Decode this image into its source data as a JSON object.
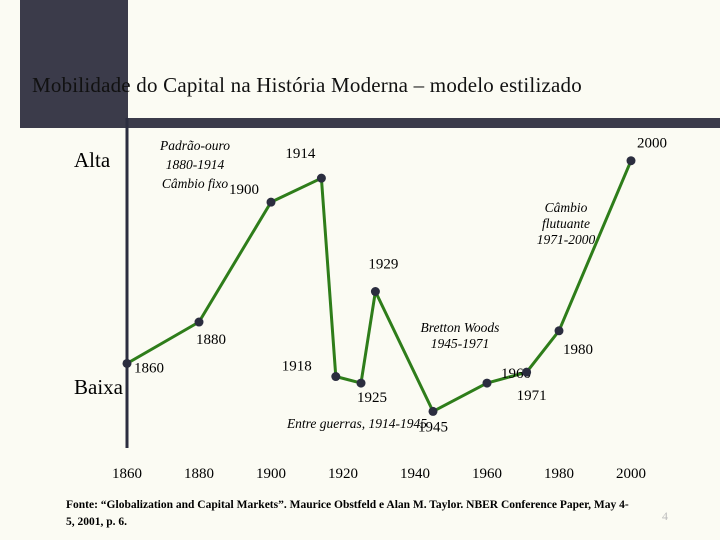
{
  "slide": {
    "title": "Mobilidade do Capital na História Moderna – modelo estilizado",
    "footer": "Fonte: “Globalization and Capital Markets”. Maurice Obstfeld e Alan M. Taylor. NBER Conference Paper, May 4-5, 2001, p. 6.",
    "page_number": "4",
    "colors": {
      "line": "#2e7d1a",
      "point": "#2b2d3f",
      "dark_block": "#3b3b4a",
      "background": "#fbfbf3"
    }
  },
  "chart_data": {
    "type": "line",
    "title": "Mobilidade do Capital na História Moderna – modelo estilizado",
    "xlabel": "",
    "ylabel": "",
    "y_high_label": "Alta",
    "y_low_label": "Baixa",
    "xlim": [
      1860,
      2000
    ],
    "ylim": [
      0,
      10
    ],
    "x_ticks": [
      "1860",
      "1880",
      "1900",
      "1920",
      "1940",
      "1960",
      "1980",
      "2000"
    ],
    "series": [
      {
        "name": "Mobilidade do capital",
        "points": [
          {
            "x": 1860,
            "y": 0.3,
            "label": "1860"
          },
          {
            "x": 1880,
            "y": 2.2,
            "label": "1880"
          },
          {
            "x": 1900,
            "y": 7.7,
            "label": "1900"
          },
          {
            "x": 1914,
            "y": 8.8,
            "label": "1914"
          },
          {
            "x": 1918,
            "y": -0.3,
            "label": "1918"
          },
          {
            "x": 1925,
            "y": -0.6,
            "label": "1925"
          },
          {
            "x": 1929,
            "y": 3.6,
            "label": "1929"
          },
          {
            "x": 1945,
            "y": -1.9,
            "label": "1945"
          },
          {
            "x": 1960,
            "y": -0.6,
            "label": "1960"
          },
          {
            "x": 1971,
            "y": -0.1,
            "label": "1971"
          },
          {
            "x": 1980,
            "y": 1.8,
            "label": "1980"
          },
          {
            "x": 2000,
            "y": 9.6,
            "label": "2000"
          }
        ]
      }
    ],
    "annotations": [
      {
        "id": "padrao",
        "lines": [
          "Padrão-ouro",
          "1880-1914",
          "Câmbio fixo"
        ]
      },
      {
        "id": "flutuante",
        "lines": [
          "Câmbio",
          "flutuante",
          "1971-2000"
        ]
      },
      {
        "id": "bretton",
        "lines": [
          "Bretton Woods",
          "1945-1971"
        ]
      },
      {
        "id": "entre",
        "lines": [
          "Entre guerras, 1914-1945"
        ]
      }
    ]
  }
}
